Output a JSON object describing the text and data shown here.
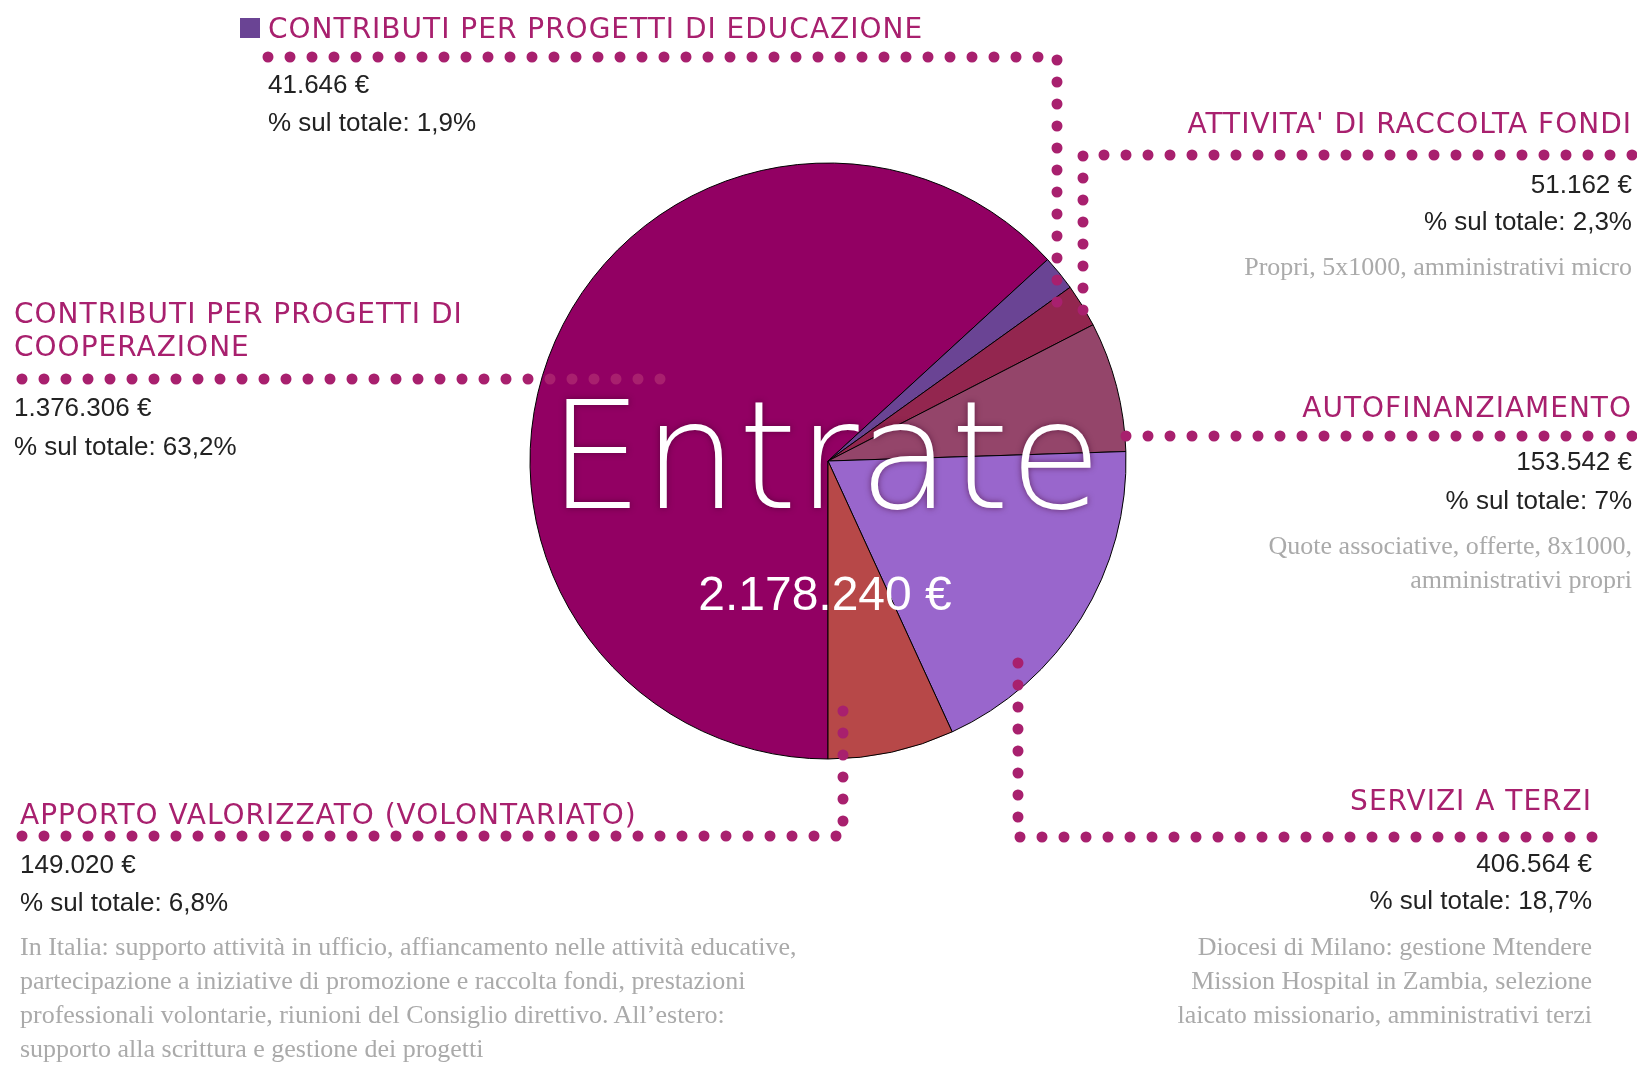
{
  "chart_data": {
    "type": "pie",
    "title": "Entrate",
    "subtitle": "2.178.240 €",
    "categories": [
      "CONTRIBUTI PER PROGETTI DI COOPERAZIONE",
      "CONTRIBUTI PER PROGETTI DI EDUCAZIONE",
      "ATTIVITA' DI RACCOLTA FONDI",
      "AUTOFINANZIAMENTO",
      "SERVIZI A TERZI",
      "APPORTO VALORIZZATO (VOLONTARIATO)"
    ],
    "values": [
      1376306,
      41646,
      51162,
      153542,
      406564,
      149020
    ],
    "colors": [
      "#920063",
      "#6a4494",
      "#93264f",
      "#94456a",
      "#9966cc",
      "#b74848"
    ],
    "value_labels": [
      "1.376.306 €",
      "41.646 €",
      "51.162 €",
      "153.542 €",
      "406.564 €",
      "149.020 €"
    ],
    "annotations": [
      "% sul totale: 63,2%",
      "% sul totale: 1,9%",
      "% sul totale: 2,3%",
      "% sul totale: 7%",
      "% sul totale: 18,7%",
      "% sul totale: 6,8%",
      "Propri, 5x1000, amministrativi micro",
      "Quote associative, offerte, 8x1000, amministrativi propri",
      "Diocesi di Milano: gestione Mtendere Mission Hospital in Zambia, selezione laicato missionario, amministrativi terzi",
      "In Italia: supporto attività in ufficio, affiancamento nelle attività educative, partecipazione a iniziative di promozione e raccolta fondi, prestazioni professionali volontarie, riunioni del Consiglio direttivo. All’estero: supporto alla scrittura e gestione dei progetti"
    ]
  }
}
